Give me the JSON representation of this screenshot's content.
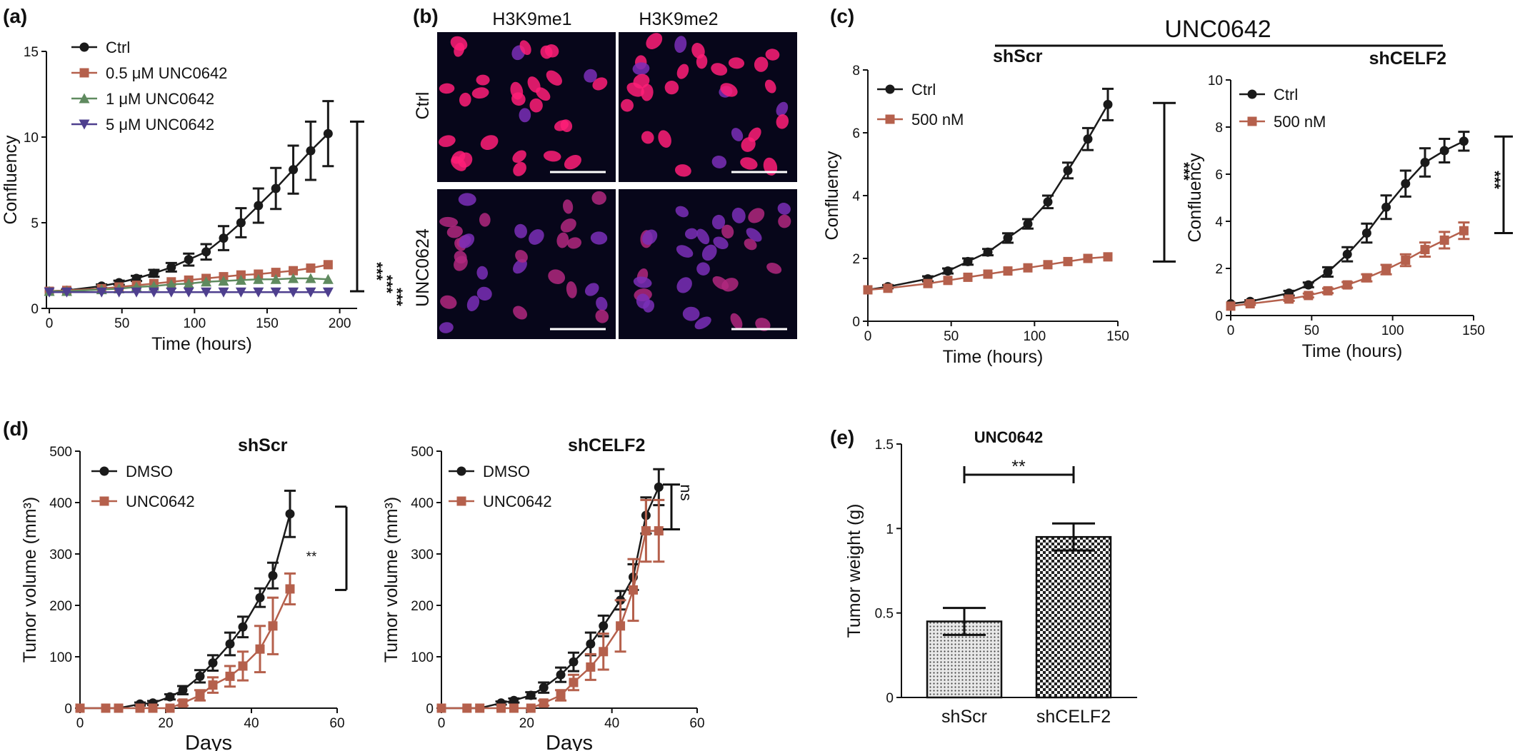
{
  "panel_labels": [
    "(a)",
    "(b)",
    "(c)",
    "(d)",
    "(e)"
  ],
  "microscopy": {
    "columns": [
      "H3K9me1",
      "H3K9me2"
    ],
    "rows": [
      "Ctrl",
      "UNC0624"
    ]
  },
  "panel_c": {
    "title": "UNC0642"
  },
  "colors": {
    "ctrl": "#1a1a1a",
    "treat": "#b5604c",
    "green": "#5f8a5f",
    "purple": "#4e3f8e",
    "nucleus": "#ff1f78",
    "nucleus_blue": "#7a2fb8"
  },
  "chart_data": [
    {
      "type": "line",
      "panel": "(a)",
      "title": "",
      "xlabel": "Time (hours)",
      "ylabel": "Confluency",
      "xlim": [
        -2,
        212
      ],
      "ylim": [
        0,
        15
      ],
      "xticks": [
        0,
        50,
        100,
        150,
        200
      ],
      "yticks": [
        0,
        5,
        10,
        15
      ],
      "significance": [
        "***",
        "***",
        "***"
      ],
      "series": [
        {
          "name": "Ctrl",
          "marker": "circle",
          "color": "#1a1a1a",
          "x": [
            0,
            12,
            36,
            48,
            60,
            72,
            84,
            96,
            108,
            120,
            132,
            144,
            156,
            168,
            180,
            192
          ],
          "y": [
            1.0,
            1.05,
            1.3,
            1.5,
            1.75,
            2.05,
            2.4,
            2.85,
            3.3,
            4.1,
            5.0,
            6.0,
            7.0,
            8.1,
            9.2,
            10.2
          ],
          "err": [
            0,
            0.05,
            0.1,
            0.12,
            0.15,
            0.2,
            0.25,
            0.35,
            0.45,
            0.7,
            0.85,
            1.0,
            1.2,
            1.4,
            1.7,
            1.9
          ]
        },
        {
          "name": "0.5 μM UNC0642",
          "marker": "square",
          "color": "#b5604c",
          "x": [
            0,
            12,
            36,
            48,
            60,
            72,
            84,
            96,
            108,
            120,
            132,
            144,
            156,
            168,
            180,
            192
          ],
          "y": [
            1.0,
            1.05,
            1.15,
            1.25,
            1.35,
            1.45,
            1.55,
            1.65,
            1.75,
            1.85,
            1.95,
            2.0,
            2.1,
            2.2,
            2.35,
            2.55
          ],
          "err": []
        },
        {
          "name": "1 μM UNC0642",
          "marker": "triangle-up",
          "color": "#5f8a5f",
          "x": [
            0,
            12,
            36,
            48,
            60,
            72,
            84,
            96,
            108,
            120,
            132,
            144,
            156,
            168,
            180,
            192
          ],
          "y": [
            1.0,
            1.0,
            1.1,
            1.15,
            1.25,
            1.3,
            1.4,
            1.45,
            1.55,
            1.6,
            1.65,
            1.7,
            1.7,
            1.75,
            1.75,
            1.7
          ],
          "err": []
        },
        {
          "name": "5 μM UNC0642",
          "marker": "triangle-down",
          "color": "#4e3f8e",
          "x": [
            0,
            12,
            36,
            48,
            60,
            72,
            84,
            96,
            108,
            120,
            132,
            144,
            156,
            168,
            180,
            192
          ],
          "y": [
            0.95,
            0.95,
            0.95,
            0.95,
            0.95,
            0.95,
            0.95,
            0.95,
            0.95,
            0.95,
            0.95,
            0.95,
            0.95,
            0.95,
            0.95,
            0.95
          ],
          "err": []
        }
      ]
    },
    {
      "type": "line",
      "panel": "(c)",
      "title": "shScr",
      "xlabel": "Time (hours)",
      "ylabel": "Confluency",
      "xlim": [
        0,
        150
      ],
      "ylim": [
        0,
        8
      ],
      "xticks": [
        0,
        50,
        100,
        150
      ],
      "yticks": [
        0,
        2,
        4,
        6,
        8
      ],
      "significance": [
        "***"
      ],
      "series": [
        {
          "name": "Ctrl",
          "marker": "circle",
          "color": "#1a1a1a",
          "x": [
            0,
            12,
            36,
            48,
            60,
            72,
            84,
            96,
            108,
            120,
            132,
            144
          ],
          "y": [
            1.0,
            1.1,
            1.35,
            1.6,
            1.9,
            2.2,
            2.65,
            3.1,
            3.8,
            4.8,
            5.8,
            6.9
          ],
          "err": [
            0,
            0.05,
            0.08,
            0.08,
            0.1,
            0.1,
            0.15,
            0.15,
            0.2,
            0.25,
            0.35,
            0.5
          ]
        },
        {
          "name": "500 nM",
          "marker": "square",
          "color": "#b5604c",
          "x": [
            0,
            12,
            36,
            48,
            60,
            72,
            84,
            96,
            108,
            120,
            132,
            144
          ],
          "y": [
            1.0,
            1.05,
            1.2,
            1.3,
            1.4,
            1.5,
            1.6,
            1.7,
            1.8,
            1.9,
            2.0,
            2.05
          ],
          "err": []
        }
      ]
    },
    {
      "type": "line",
      "panel": "(c)",
      "title": "shCELF2",
      "xlabel": "Time (hours)",
      "ylabel": "Confluency",
      "xlim": [
        0,
        150
      ],
      "ylim": [
        0,
        10
      ],
      "xticks": [
        0,
        50,
        100,
        150
      ],
      "yticks": [
        0,
        2,
        4,
        6,
        8,
        10
      ],
      "significance": [
        "***"
      ],
      "series": [
        {
          "name": "Ctrl",
          "marker": "circle",
          "color": "#1a1a1a",
          "x": [
            0,
            12,
            36,
            48,
            60,
            72,
            84,
            96,
            108,
            120,
            132,
            144
          ],
          "y": [
            0.5,
            0.6,
            0.95,
            1.3,
            1.85,
            2.6,
            3.5,
            4.6,
            5.6,
            6.5,
            7.0,
            7.4
          ],
          "err": [
            0,
            0.05,
            0.1,
            0.1,
            0.2,
            0.3,
            0.4,
            0.5,
            0.55,
            0.6,
            0.5,
            0.4
          ]
        },
        {
          "name": "500 nM",
          "marker": "square",
          "color": "#b5604c",
          "x": [
            0,
            12,
            36,
            48,
            60,
            72,
            84,
            96,
            108,
            120,
            132,
            144
          ],
          "y": [
            0.4,
            0.5,
            0.7,
            0.85,
            1.05,
            1.3,
            1.6,
            1.95,
            2.35,
            2.8,
            3.2,
            3.6
          ],
          "err": [
            0,
            0.05,
            0.08,
            0.08,
            0.1,
            0.12,
            0.15,
            0.2,
            0.25,
            0.3,
            0.35,
            0.35
          ]
        }
      ]
    },
    {
      "type": "line",
      "panel": "(d)",
      "title": "shScr",
      "xlabel": "Days",
      "ylabel": "Tumor volume (mm³)",
      "xlim": [
        0,
        60
      ],
      "ylim": [
        0,
        500
      ],
      "xticks": [
        0,
        20,
        40,
        60
      ],
      "yticks": [
        0,
        100,
        200,
        300,
        400,
        500
      ],
      "significance": [
        "**"
      ],
      "series": [
        {
          "name": "DMSO",
          "marker": "circle",
          "color": "#1a1a1a",
          "x": [
            0,
            6,
            9,
            14,
            17,
            21,
            24,
            28,
            31,
            35,
            38,
            42,
            45,
            49
          ],
          "y": [
            0,
            0,
            0,
            8,
            10,
            22,
            35,
            62,
            88,
            125,
            158,
            215,
            258,
            378
          ],
          "err": [
            0,
            0,
            0,
            3,
            4,
            5,
            8,
            12,
            15,
            22,
            20,
            18,
            25,
            45
          ]
        },
        {
          "name": "UNC0642",
          "marker": "square",
          "color": "#b5604c",
          "x": [
            0,
            6,
            9,
            14,
            17,
            21,
            24,
            28,
            31,
            35,
            38,
            42,
            45,
            49
          ],
          "y": [
            0,
            0,
            0,
            0,
            0,
            0,
            10,
            25,
            45,
            62,
            82,
            115,
            160,
            232
          ],
          "err": [
            0,
            0,
            0,
            0,
            0,
            0,
            5,
            10,
            15,
            20,
            28,
            45,
            55,
            30
          ]
        }
      ]
    },
    {
      "type": "line",
      "panel": "(d)",
      "title": "shCELF2",
      "xlabel": "Days",
      "ylabel": "Tumor volume (mm³)",
      "xlim": [
        0,
        60
      ],
      "ylim": [
        0,
        500
      ],
      "xticks": [
        0,
        20,
        40,
        60
      ],
      "yticks": [
        0,
        100,
        200,
        300,
        400,
        500
      ],
      "significance": [
        "ns"
      ],
      "series": [
        {
          "name": "DMSO",
          "marker": "circle",
          "color": "#1a1a1a",
          "x": [
            0,
            6,
            9,
            14,
            17,
            21,
            24,
            28,
            31,
            35,
            38,
            42,
            45,
            48,
            51
          ],
          "y": [
            0,
            0,
            0,
            10,
            15,
            25,
            40,
            65,
            90,
            125,
            160,
            210,
            255,
            375,
            430
          ],
          "err": [
            0,
            0,
            0,
            3,
            4,
            6,
            10,
            14,
            18,
            22,
            20,
            18,
            25,
            35,
            35
          ]
        },
        {
          "name": "UNC0642",
          "marker": "square",
          "color": "#b5604c",
          "x": [
            0,
            6,
            9,
            14,
            17,
            21,
            24,
            28,
            31,
            35,
            38,
            42,
            45,
            48,
            51
          ],
          "y": [
            0,
            0,
            0,
            0,
            0,
            0,
            10,
            25,
            50,
            80,
            110,
            160,
            230,
            345,
            345
          ],
          "err": [
            0,
            0,
            0,
            0,
            0,
            0,
            5,
            10,
            15,
            25,
            35,
            50,
            60,
            60,
            60
          ]
        }
      ]
    },
    {
      "type": "bar",
      "panel": "(e)",
      "title": "UNC0642",
      "xlabel": "",
      "ylabel": "Tumor weight (g)",
      "ylim": [
        0,
        1.5
      ],
      "yticks": [
        0,
        0.5,
        1.0,
        1.5
      ],
      "categories": [
        "shScr",
        "shCELF2"
      ],
      "values": [
        0.45,
        0.95
      ],
      "errors": [
        0.08,
        0.08
      ],
      "significance": [
        "**"
      ]
    }
  ]
}
